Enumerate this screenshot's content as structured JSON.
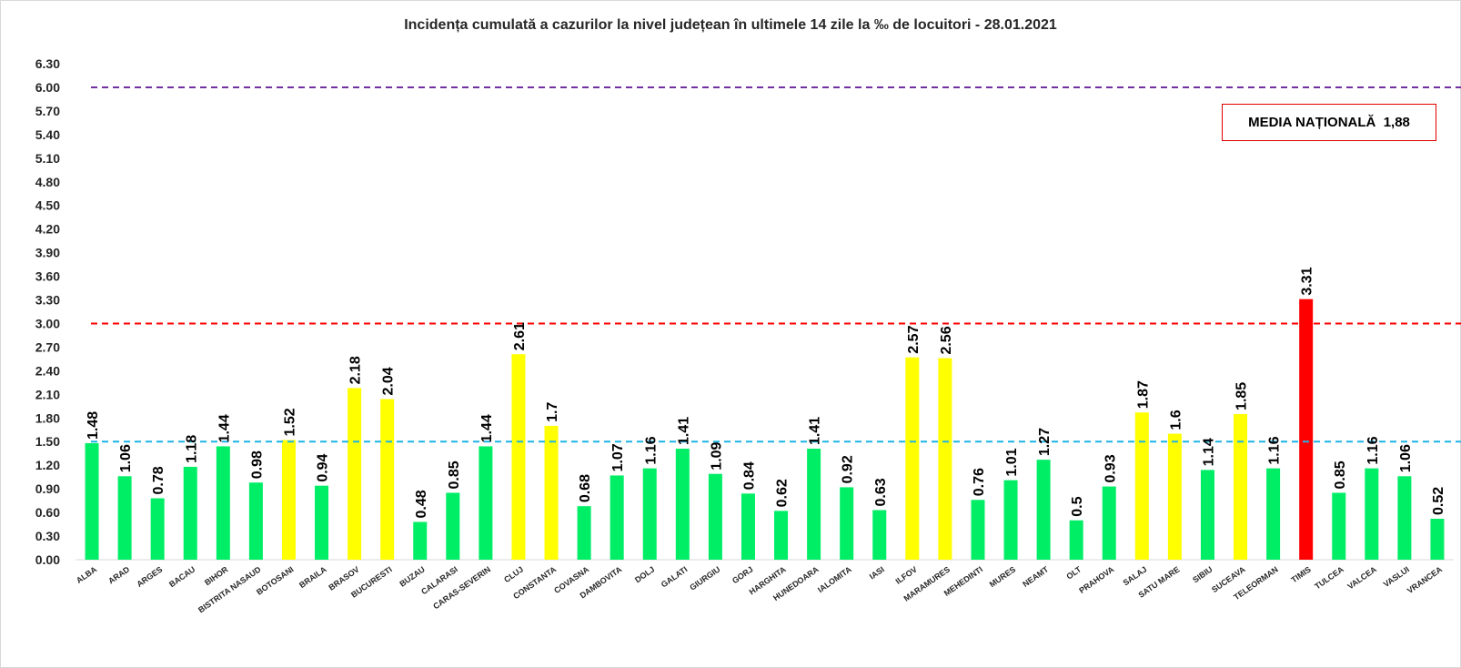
{
  "title": "Incidența cumulată a cazurilor la nivel județean în ultimele 14 zile la ‰ de locuitori - 28.01.2021",
  "media_label": "MEDIA NAȚIONALĂ  1,88",
  "colors": {
    "green": "#00ee66",
    "yellow": "#ffff00",
    "red": "#ff0000",
    "line_purple": "#7030a0",
    "line_red": "#ff0000",
    "line_cyan": "#1eb4e6"
  },
  "chart_data": {
    "type": "bar",
    "title": "Incidența cumulată a cazurilor la nivel județean în ultimele 14 zile la ‰ de locuitori - 28.01.2021",
    "xlabel": "",
    "ylabel": "",
    "ylim": [
      0,
      6.3
    ],
    "y_ticks": [
      "0.00",
      "0.30",
      "0.60",
      "0.90",
      "1.20",
      "1.50",
      "1.80",
      "2.10",
      "2.40",
      "2.70",
      "3.00",
      "3.30",
      "3.60",
      "3.90",
      "4.20",
      "4.50",
      "4.80",
      "5.10",
      "5.40",
      "5.70",
      "6.00",
      "6.30"
    ],
    "grid": false,
    "legend": "none",
    "reference_lines": [
      {
        "value": 6.0,
        "color": "purple"
      },
      {
        "value": 3.0,
        "color": "red"
      },
      {
        "value": 1.5,
        "color": "cyan"
      }
    ],
    "categories": [
      "ALBA",
      "ARAD",
      "ARGES",
      "BACAU",
      "BIHOR",
      "BISTRITA NASAUD",
      "BOTOSANI",
      "BRAILA",
      "BRASOV",
      "BUCURESTI",
      "BUZAU",
      "CALARASI",
      "CARAS-SEVERIN",
      "CLUJ",
      "CONSTANTA",
      "COVASNA",
      "DAMBOVITA",
      "DOLJ",
      "GALATI",
      "GIURGIU",
      "GORJ",
      "HARGHITA",
      "HUNEDOARA",
      "IALOMITA",
      "IASI",
      "ILFOV",
      "MARAMURES",
      "MEHEDINTI",
      "MURES",
      "NEAMT",
      "OLT",
      "PRAHOVA",
      "SALAJ",
      "SATU MARE",
      "SIBIU",
      "SUCEAVA",
      "TELEORMAN",
      "TIMIS",
      "TULCEA",
      "VALCEA",
      "VASLUI",
      "VRANCEA"
    ],
    "values": [
      1.48,
      1.06,
      0.78,
      1.18,
      1.44,
      0.98,
      1.52,
      0.94,
      2.18,
      2.04,
      0.48,
      0.85,
      1.44,
      2.61,
      1.7,
      0.68,
      1.07,
      1.16,
      1.41,
      1.09,
      0.84,
      0.62,
      1.41,
      0.92,
      0.63,
      2.57,
      2.56,
      0.76,
      1.01,
      1.27,
      0.5,
      0.93,
      1.87,
      1.6,
      1.14,
      1.85,
      1.16,
      3.31,
      0.85,
      1.16,
      1.06,
      0.52
    ],
    "value_labels": [
      "1.48",
      "1.06",
      "0.78",
      "1.18",
      "1.44",
      "0.98",
      "1.52",
      "0.94",
      "2.18",
      "2.04",
      "0.48",
      "0.85",
      "1.44",
      "2.61",
      "1.7",
      "0.68",
      "1.07",
      "1.16",
      "1.41",
      "1.09",
      "0.84",
      "0.62",
      "1.41",
      "0.92",
      "0.63",
      "2.57",
      "2.56",
      "0.76",
      "1.01",
      "1.27",
      "0.5",
      "0.93",
      "1.87",
      "1.6",
      "1.14",
      "1.85",
      "1.16",
      "3.31",
      "0.85",
      "1.16",
      "1.06",
      "0.52"
    ],
    "bar_colors": [
      "green",
      "green",
      "green",
      "green",
      "green",
      "green",
      "yellow",
      "green",
      "yellow",
      "yellow",
      "green",
      "green",
      "green",
      "yellow",
      "yellow",
      "green",
      "green",
      "green",
      "green",
      "green",
      "green",
      "green",
      "green",
      "green",
      "green",
      "yellow",
      "yellow",
      "green",
      "green",
      "green",
      "green",
      "green",
      "yellow",
      "yellow",
      "green",
      "yellow",
      "green",
      "red",
      "green",
      "green",
      "green",
      "green"
    ]
  }
}
